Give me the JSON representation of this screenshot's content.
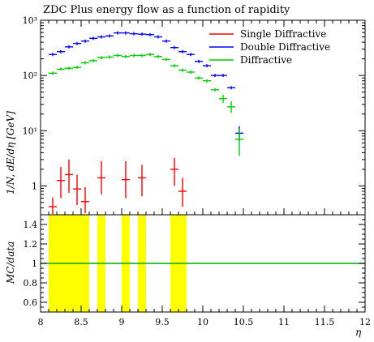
{
  "chart_data": [
    {
      "type": "scatter",
      "title": "ZDC Plus energy flow as a function of rapidity",
      "ylabel": "1/N, dE/dη [GeV]",
      "yscale": "log",
      "ylim": [
        0.3,
        1000
      ],
      "xlim": [
        8,
        12
      ],
      "yticks": [
        {
          "v": 1,
          "label": "1"
        },
        {
          "v": 10,
          "label": "10¹"
        },
        {
          "v": 100,
          "label": "10²"
        },
        {
          "v": 1000,
          "label": "10³"
        }
      ],
      "legend_position": "top-right",
      "series": [
        {
          "name": "Single Diffractive",
          "color": "#ff0000",
          "points": [
            {
              "x": 8.15,
              "y": 0.42,
              "lo": 0.31,
              "hi": 0.62
            },
            {
              "x": 8.25,
              "y": 1.25,
              "lo": 0.6,
              "hi": 2.2
            },
            {
              "x": 8.35,
              "y": 1.6,
              "lo": 0.75,
              "hi": 3.0
            },
            {
              "x": 8.45,
              "y": 0.88,
              "lo": 0.45,
              "hi": 1.6
            },
            {
              "x": 8.55,
              "y": 0.52,
              "lo": 0.32,
              "hi": 0.95
            },
            {
              "x": 8.75,
              "y": 1.4,
              "lo": 0.7,
              "hi": 2.8
            },
            {
              "x": 9.05,
              "y": 1.3,
              "lo": 0.6,
              "hi": 2.8
            },
            {
              "x": 9.25,
              "y": 1.4,
              "lo": 0.65,
              "hi": 2.4
            },
            {
              "x": 9.65,
              "y": 2.0,
              "lo": 1.0,
              "hi": 3.2
            },
            {
              "x": 9.75,
              "y": 0.8,
              "lo": 0.42,
              "hi": 1.4
            }
          ]
        },
        {
          "name": "Double Diffractive",
          "color": "#0000ff",
          "points": [
            {
              "x": 8.15,
              "y": 240
            },
            {
              "x": 8.25,
              "y": 270
            },
            {
              "x": 8.35,
              "y": 330
            },
            {
              "x": 8.45,
              "y": 380
            },
            {
              "x": 8.55,
              "y": 420
            },
            {
              "x": 8.65,
              "y": 470
            },
            {
              "x": 8.75,
              "y": 500
            },
            {
              "x": 8.85,
              "y": 520
            },
            {
              "x": 8.95,
              "y": 590
            },
            {
              "x": 9.05,
              "y": 590
            },
            {
              "x": 9.15,
              "y": 570
            },
            {
              "x": 9.25,
              "y": 560
            },
            {
              "x": 9.35,
              "y": 550
            },
            {
              "x": 9.45,
              "y": 500
            },
            {
              "x": 9.55,
              "y": 420
            },
            {
              "x": 9.65,
              "y": 320
            },
            {
              "x": 9.75,
              "y": 270
            },
            {
              "x": 9.85,
              "y": 240
            },
            {
              "x": 9.95,
              "y": 180
            },
            {
              "x": 10.05,
              "y": 150
            },
            {
              "x": 10.15,
              "y": 100
            },
            {
              "x": 10.25,
              "y": 100
            },
            {
              "x": 10.35,
              "y": 60
            },
            {
              "x": 10.45,
              "y": 9,
              "lo": 6.5,
              "hi": 12
            }
          ]
        },
        {
          "name": "Diffractive",
          "color": "#00cc00",
          "points": [
            {
              "x": 8.15,
              "y": 110
            },
            {
              "x": 8.25,
              "y": 130
            },
            {
              "x": 8.35,
              "y": 135
            },
            {
              "x": 8.45,
              "y": 140
            },
            {
              "x": 8.55,
              "y": 170
            },
            {
              "x": 8.65,
              "y": 185
            },
            {
              "x": 8.75,
              "y": 210
            },
            {
              "x": 8.85,
              "y": 215
            },
            {
              "x": 8.95,
              "y": 230
            },
            {
              "x": 9.05,
              "y": 220
            },
            {
              "x": 9.15,
              "y": 230
            },
            {
              "x": 9.25,
              "y": 230
            },
            {
              "x": 9.35,
              "y": 240
            },
            {
              "x": 9.45,
              "y": 220
            },
            {
              "x": 9.55,
              "y": 195
            },
            {
              "x": 9.65,
              "y": 150
            },
            {
              "x": 9.75,
              "y": 125
            },
            {
              "x": 9.85,
              "y": 115
            },
            {
              "x": 9.95,
              "y": 90
            },
            {
              "x": 10.05,
              "y": 80
            },
            {
              "x": 10.15,
              "y": 55
            },
            {
              "x": 10.25,
              "y": 38,
              "lo": 32,
              "hi": 45
            },
            {
              "x": 10.35,
              "y": 27,
              "lo": 21,
              "hi": 34
            },
            {
              "x": 10.45,
              "y": 7,
              "lo": 3.5,
              "hi": 11
            }
          ]
        }
      ]
    },
    {
      "type": "line",
      "ylabel": "MC/data",
      "xlabel": "η",
      "xlim": [
        8,
        12
      ],
      "ylim": [
        0.5,
        1.5
      ],
      "xticks": [
        {
          "v": 8,
          "label": "8"
        },
        {
          "v": 8.5,
          "label": "8.5"
        },
        {
          "v": 9,
          "label": "9"
        },
        {
          "v": 9.5,
          "label": "9.5"
        },
        {
          "v": 10,
          "label": "10"
        },
        {
          "v": 10.5,
          "label": "10.5"
        },
        {
          "v": 11,
          "label": "11"
        },
        {
          "v": 11.5,
          "label": "11.5"
        },
        {
          "v": 12,
          "label": "12"
        }
      ],
      "yticks": [
        {
          "v": 0.6,
          "label": "0.6"
        },
        {
          "v": 0.8,
          "label": "0.8"
        },
        {
          "v": 1.0,
          "label": "1"
        },
        {
          "v": 1.2,
          "label": "1.2"
        },
        {
          "v": 1.4,
          "label": "1.4"
        }
      ],
      "reference_line": {
        "y": 1,
        "color": "#00aa00"
      },
      "bands": [
        {
          "x0": 8.1,
          "x1": 8.6
        },
        {
          "x0": 8.7,
          "x1": 8.8
        },
        {
          "x0": 9.0,
          "x1": 9.1
        },
        {
          "x0": 9.2,
          "x1": 9.3
        },
        {
          "x0": 9.6,
          "x1": 9.8
        }
      ],
      "band_color": "#ffff00"
    }
  ]
}
